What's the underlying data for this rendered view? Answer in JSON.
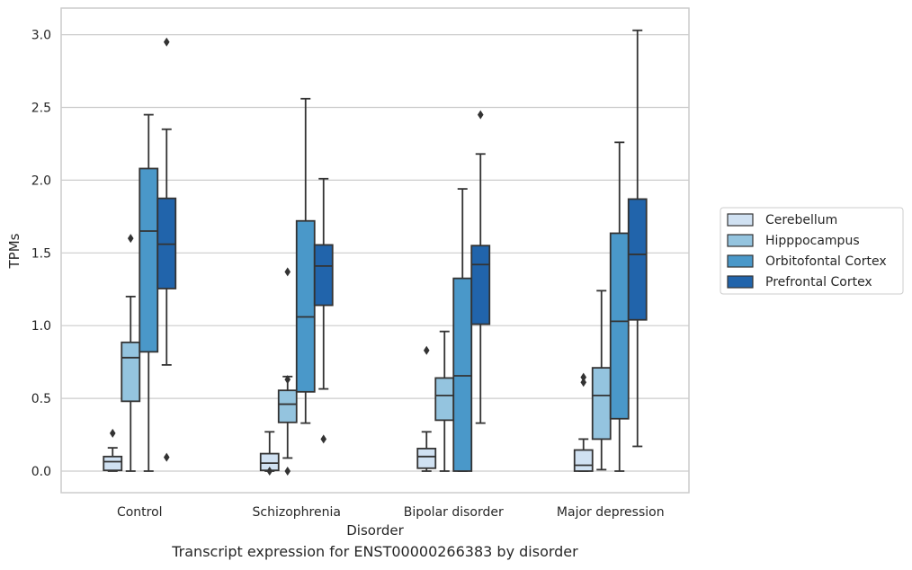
{
  "caption": "Transcript expression for ENST00000266383 by disorder",
  "chart_data": {
    "type": "box",
    "xlabel": "Disorder",
    "ylabel": "TPMs",
    "ylim": [
      -0.15,
      3.18
    ],
    "yticks": [
      0.0,
      0.5,
      1.0,
      1.5,
      2.0,
      2.5,
      3.0
    ],
    "ytick_labels": [
      "0.0",
      "0.5",
      "1.0",
      "1.5",
      "2.0",
      "2.5",
      "3.0"
    ],
    "grid": "horizontal",
    "legend_position": "right",
    "categories": [
      "Control",
      "Schizophrenia",
      "Bipolar disorder",
      "Major depression"
    ],
    "series": [
      {
        "name": "Cerebellum",
        "color": "#d0e1f2",
        "boxes": [
          {
            "whislo": 0.0,
            "q1": 0.005,
            "med": 0.065,
            "q3": 0.1,
            "whishi": 0.16,
            "fliers": [
              0.26
            ]
          },
          {
            "whislo": 0.0,
            "q1": 0.005,
            "med": 0.055,
            "q3": 0.12,
            "whishi": 0.27,
            "fliers": [
              0.0
            ]
          },
          {
            "whislo": 0.0,
            "q1": 0.02,
            "med": 0.1,
            "q3": 0.155,
            "whishi": 0.27,
            "fliers": [
              0.83
            ]
          },
          {
            "whislo": 0.0,
            "q1": 0.0,
            "med": 0.04,
            "q3": 0.145,
            "whishi": 0.22,
            "fliers": [
              0.61,
              0.645
            ]
          }
        ]
      },
      {
        "name": "Hipppocampus",
        "color": "#94c4df",
        "boxes": [
          {
            "whislo": 0.0,
            "q1": 0.48,
            "med": 0.78,
            "q3": 0.885,
            "whishi": 1.2,
            "fliers": [
              1.6
            ]
          },
          {
            "whislo": 0.09,
            "q1": 0.335,
            "med": 0.46,
            "q3": 0.555,
            "whishi": 0.65,
            "fliers": [
              0.0,
              0.63,
              1.37
            ]
          },
          {
            "whislo": 0.0,
            "q1": 0.35,
            "med": 0.52,
            "q3": 0.64,
            "whishi": 0.96,
            "fliers": []
          },
          {
            "whislo": 0.01,
            "q1": 0.22,
            "med": 0.52,
            "q3": 0.71,
            "whishi": 1.24,
            "fliers": []
          }
        ]
      },
      {
        "name": "Orbitofontal Cortex",
        "color": "#4a98c9",
        "boxes": [
          {
            "whislo": 0.0,
            "q1": 0.82,
            "med": 1.65,
            "q3": 2.08,
            "whishi": 2.45,
            "fliers": []
          },
          {
            "whislo": 0.33,
            "q1": 0.545,
            "med": 1.06,
            "q3": 1.72,
            "whishi": 2.56,
            "fliers": []
          },
          {
            "whislo": 0.0,
            "q1": 0.0,
            "med": 0.655,
            "q3": 1.325,
            "whishi": 1.94,
            "fliers": []
          },
          {
            "whislo": 0.0,
            "q1": 0.36,
            "med": 1.03,
            "q3": 1.635,
            "whishi": 2.26,
            "fliers": []
          }
        ]
      },
      {
        "name": "Prefrontal Cortex",
        "color": "#2164ab",
        "boxes": [
          {
            "whislo": 0.73,
            "q1": 1.255,
            "med": 1.56,
            "q3": 1.875,
            "whishi": 2.35,
            "fliers": [
              0.095,
              2.95
            ]
          },
          {
            "whislo": 0.565,
            "q1": 1.14,
            "med": 1.41,
            "q3": 1.555,
            "whishi": 2.01,
            "fliers": [
              0.22
            ]
          },
          {
            "whislo": 0.33,
            "q1": 1.01,
            "med": 1.42,
            "q3": 1.55,
            "whishi": 2.18,
            "fliers": [
              2.45
            ]
          },
          {
            "whislo": 0.17,
            "q1": 1.04,
            "med": 1.49,
            "q3": 1.87,
            "whishi": 3.03,
            "fliers": []
          }
        ]
      }
    ]
  }
}
